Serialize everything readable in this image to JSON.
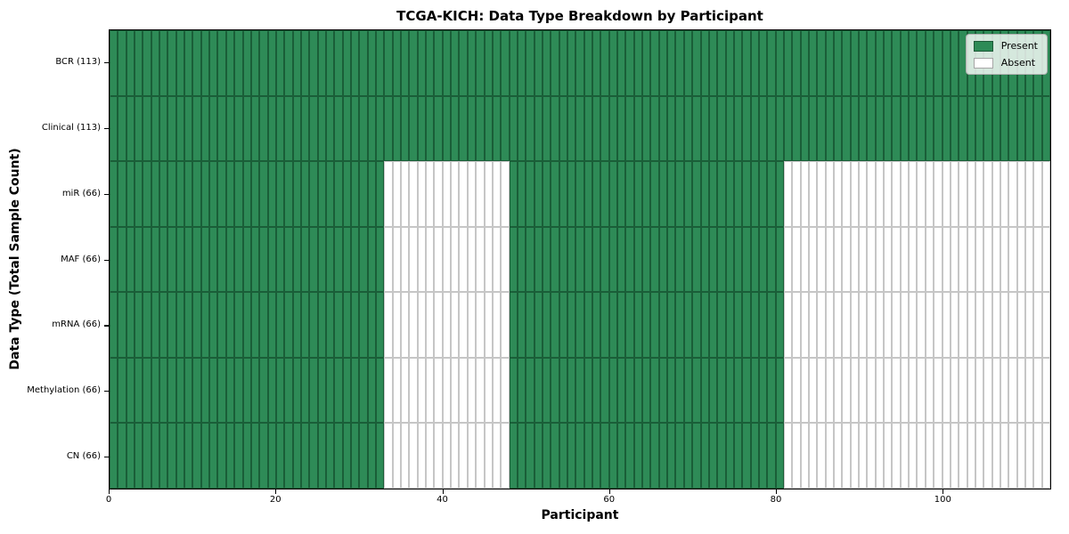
{
  "chart_data": {
    "type": "heatmap",
    "title": "TCGA-KICH: Data Type Breakdown by Participant",
    "xlabel": "Participant",
    "ylabel": "Data Type (Total Sample Count)",
    "xlim": [
      0,
      113
    ],
    "n_participants": 113,
    "x_ticks": [
      0,
      20,
      40,
      60,
      80,
      100
    ],
    "grid": "per-cell edges, no gridlines",
    "rows": [
      {
        "data_type": "BCR",
        "total_samples": 113,
        "label": "BCR (113)",
        "present_ranges": [
          [
            0,
            113
          ]
        ]
      },
      {
        "data_type": "Clinical",
        "total_samples": 113,
        "label": "Clinical (113)",
        "present_ranges": [
          [
            0,
            113
          ]
        ]
      },
      {
        "data_type": "miR",
        "total_samples": 66,
        "label": "miR (66)",
        "present_ranges": [
          [
            0,
            33
          ],
          [
            48,
            81
          ]
        ]
      },
      {
        "data_type": "MAF",
        "total_samples": 66,
        "label": "MAF (66)",
        "present_ranges": [
          [
            0,
            33
          ],
          [
            48,
            81
          ]
        ]
      },
      {
        "data_type": "mRNA",
        "total_samples": 66,
        "label": "mRNA (66)",
        "present_ranges": [
          [
            0,
            33
          ],
          [
            48,
            81
          ]
        ]
      },
      {
        "data_type": "Methylation",
        "total_samples": 66,
        "label": "Methylation (66)",
        "present_ranges": [
          [
            0,
            33
          ],
          [
            48,
            81
          ]
        ]
      },
      {
        "data_type": "CN",
        "total_samples": 66,
        "label": "CN (66)",
        "present_ranges": [
          [
            0,
            33
          ],
          [
            48,
            81
          ]
        ]
      }
    ],
    "legend": {
      "position": "upper right",
      "entries": [
        {
          "label": "Present",
          "color": "#2e8b57"
        },
        {
          "label": "Absent",
          "color": "#ffffff"
        }
      ]
    },
    "colors": {
      "present": "#2e8b57",
      "absent": "#ffffff",
      "present_edge": "#1a5e38",
      "absent_edge": "#c6c6c6"
    }
  }
}
